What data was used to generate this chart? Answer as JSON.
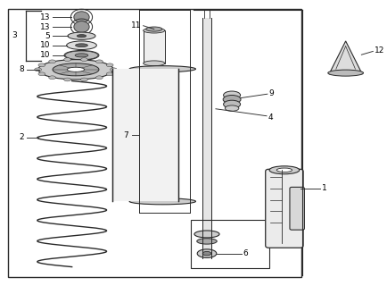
{
  "bg_color": "#ffffff",
  "line_color": "#2a2a2a",
  "fig_width": 4.35,
  "fig_height": 3.2,
  "dpi": 100
}
